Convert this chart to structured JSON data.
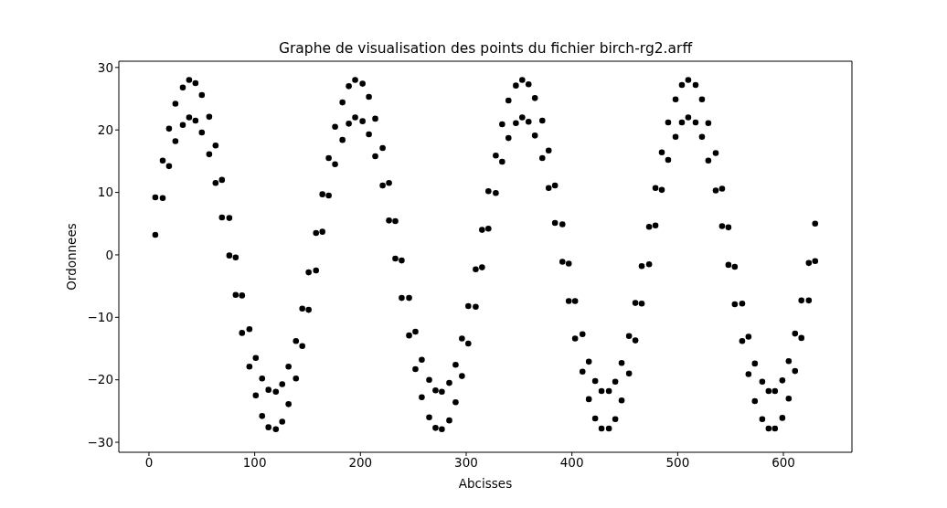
{
  "chart_data": {
    "type": "scatter",
    "title": "Graphe de visualisation des points du fichier birch-rg2.arff",
    "xlabel": "Abcisses",
    "ylabel": "Ordonnees",
    "xlim": [
      -28.5,
      664.8
    ],
    "ylim": [
      -31.6,
      31.0
    ],
    "xticks": [
      0,
      100,
      200,
      300,
      400,
      500,
      600
    ],
    "yticks": [
      -30,
      -20,
      -10,
      0,
      10,
      20,
      30
    ],
    "marker": "circle",
    "series": [
      {
        "color": "#000000",
        "x": [
          6,
          6,
          13,
          13,
          19,
          19,
          25,
          25,
          32,
          32,
          38,
          38,
          44,
          44,
          50,
          50,
          57,
          57,
          63,
          63,
          69,
          69,
          76,
          76,
          82,
          82,
          88,
          88,
          95,
          95,
          101,
          101,
          107,
          107,
          113,
          113,
          120,
          120,
          126,
          126,
          132,
          132,
          139,
          139,
          145,
          145,
          151,
          151,
          158,
          158,
          164,
          164,
          170,
          170,
          176,
          176,
          183,
          183,
          189,
          189,
          195,
          195,
          202,
          202,
          208,
          208,
          214,
          214,
          221,
          221,
          227,
          227,
          233,
          233,
          239,
          239,
          246,
          246,
          252,
          252,
          258,
          258,
          265,
          265,
          271,
          271,
          277,
          277,
          284,
          284,
          290,
          290,
          296,
          296,
          302,
          302,
          309,
          309,
          315,
          315,
          321,
          321,
          328,
          328,
          334,
          334,
          340,
          340,
          347,
          347,
          353,
          353,
          359,
          359,
          365,
          365,
          372,
          372,
          378,
          378,
          384,
          384,
          391,
          391,
          397,
          397,
          403,
          403,
          410,
          410,
          416,
          416,
          422,
          422,
          428,
          428,
          435,
          435,
          441,
          441,
          447,
          447,
          454,
          454,
          460,
          460,
          466,
          466,
          473,
          473,
          479,
          479,
          485,
          485,
          491,
          491,
          498,
          498,
          504,
          504,
          510,
          510,
          517,
          517,
          523,
          523,
          529,
          529,
          536,
          536,
          542,
          542,
          548,
          548,
          554,
          554,
          561,
          561,
          567,
          567,
          573,
          573,
          580,
          580,
          586,
          586,
          592,
          592,
          599,
          599,
          605,
          605,
          611,
          611,
          617,
          617,
          624,
          624,
          630,
          630
        ],
        "values": [
          9.2,
          3.2,
          15.1,
          9.1,
          20.2,
          14.2,
          24.2,
          18.2,
          26.8,
          20.8,
          28.0,
          22.0,
          27.5,
          21.5,
          25.6,
          19.6,
          22.1,
          16.1,
          17.5,
          11.5,
          12.0,
          6.0,
          5.9,
          -0.1,
          -0.4,
          -6.4,
          -6.5,
          -12.5,
          -11.9,
          -17.9,
          -16.5,
          -22.5,
          -19.8,
          -25.8,
          -21.6,
          -27.6,
          -21.9,
          -27.9,
          -20.7,
          -26.7,
          -17.9,
          -23.9,
          -13.8,
          -19.8,
          -8.6,
          -14.6,
          -2.8,
          -8.8,
          3.5,
          -2.5,
          9.7,
          3.7,
          15.5,
          9.5,
          20.5,
          14.5,
          24.4,
          18.4,
          27.0,
          21.0,
          28.0,
          22.0,
          27.4,
          21.4,
          25.3,
          19.3,
          21.8,
          15.8,
          17.1,
          11.1,
          11.5,
          5.5,
          5.4,
          -0.6,
          -0.9,
          -6.9,
          -6.9,
          -12.9,
          -12.3,
          -18.3,
          -16.8,
          -22.8,
          -20.0,
          -26.0,
          -21.7,
          -27.7,
          -21.9,
          -27.9,
          -20.5,
          -26.5,
          -17.6,
          -23.6,
          -13.4,
          -19.4,
          -8.2,
          -14.2,
          -2.3,
          -8.3,
          4.0,
          -2.0,
          10.2,
          4.2,
          15.9,
          9.9,
          20.9,
          14.9,
          24.7,
          18.7,
          27.1,
          21.1,
          28.0,
          22.0,
          27.3,
          21.3,
          25.1,
          19.1,
          21.5,
          15.5,
          16.7,
          10.7,
          11.1,
          5.1,
          4.9,
          -1.1,
          -1.4,
          -7.4,
          -7.4,
          -13.4,
          -12.7,
          -18.7,
          -17.1,
          -23.1,
          -20.2,
          -26.2,
          -21.8,
          -27.8,
          -21.8,
          -27.8,
          -20.3,
          -26.3,
          -17.3,
          -23.3,
          -13.0,
          -19.0,
          -7.7,
          -13.7,
          -1.8,
          -7.8,
          4.5,
          -1.5,
          10.7,
          4.7,
          16.4,
          10.4,
          21.2,
          15.2,
          24.9,
          18.9,
          27.2,
          21.2,
          28.0,
          22.0,
          27.2,
          21.2,
          24.9,
          18.9,
          21.1,
          15.1,
          16.3,
          10.3,
          10.6,
          4.6,
          4.4,
          -1.6,
          -1.9,
          -7.9,
          -7.8,
          -13.8,
          -13.1,
          -19.1,
          -17.4,
          -23.4,
          -20.3,
          -26.3,
          -21.8,
          -27.8,
          -21.8,
          -27.8,
          -20.1,
          -26.1,
          -17.0,
          -23.0,
          -12.6,
          -18.6,
          -7.3,
          -13.3,
          -1.3,
          -7.3,
          5.0,
          -1.0
        ]
      }
    ]
  }
}
